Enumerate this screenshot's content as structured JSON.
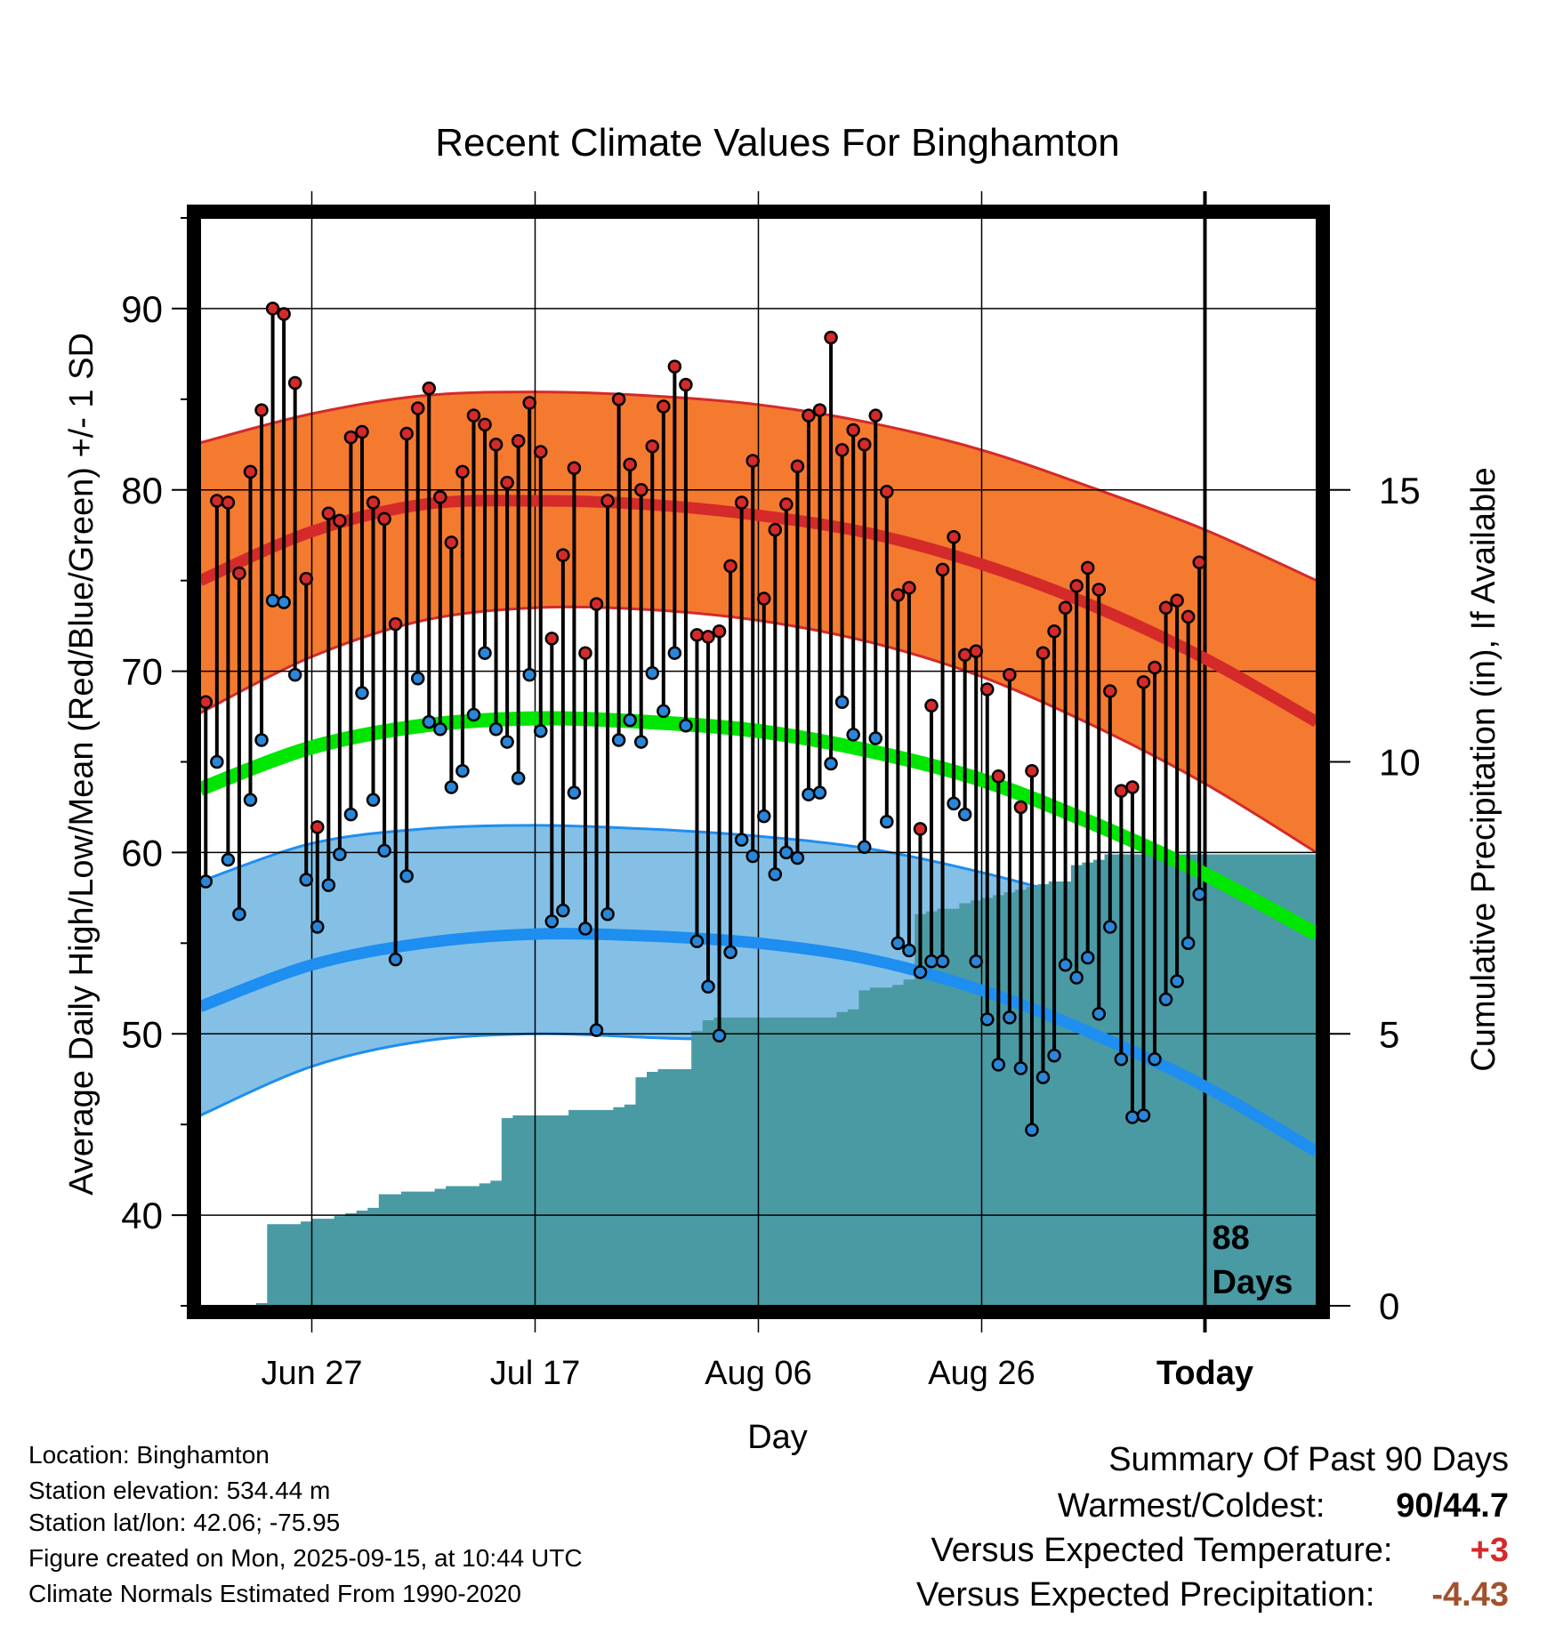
{
  "chart_data": {
    "type": "line",
    "title": "Recent Climate Values For Binghamton",
    "xlabel": "Day",
    "ylabel": "Average Daily High/Low/Mean (Red/Blue/Green) +/- 1 SD",
    "y2label": "Cumulative Precipitation (in), If Available",
    "ylim": [
      35,
      95
    ],
    "y2lim": [
      0,
      20
    ],
    "yticks": [
      40,
      50,
      60,
      70,
      80,
      90
    ],
    "y2ticks": [
      0,
      5,
      10,
      15
    ],
    "xlim": [
      0,
      100
    ],
    "xticks": [
      {
        "day": 10,
        "label": "Jun 27"
      },
      {
        "day": 30,
        "label": "Jul 17"
      },
      {
        "day": 50,
        "label": "Aug 06"
      },
      {
        "day": 70,
        "label": "Aug 26"
      },
      {
        "day": 90,
        "label": "Today"
      }
    ],
    "today_day": 90,
    "today_annotation": [
      "88",
      "Days"
    ],
    "colors": {
      "high_band": "#f47a30",
      "high_line": "#d42a2a",
      "high_edge": "#d42a2a",
      "low_band": "#84c0e6",
      "low_line": "#1e8ef0",
      "low_edge": "#1e8ef0",
      "mean_line": "#00e600",
      "precip": "#4a9aa4",
      "high_marker": "#d42a2a",
      "low_marker": "#2a86d8"
    },
    "normals": {
      "days": [
        0,
        10,
        20,
        30,
        40,
        50,
        60,
        70,
        80,
        90,
        100
      ],
      "high_mean": [
        75.0,
        77.7,
        79.2,
        79.4,
        79.2,
        78.6,
        77.6,
        75.9,
        73.6,
        70.7,
        67.2
      ],
      "high_upper": [
        82.6,
        84.2,
        85.2,
        85.4,
        85.2,
        84.7,
        83.7,
        82.2,
        80.1,
        77.8,
        75.0
      ],
      "high_lower": [
        67.7,
        70.8,
        72.8,
        73.5,
        73.4,
        72.8,
        71.6,
        69.7,
        67.0,
        63.8,
        60.0
      ],
      "mean_mean": [
        63.5,
        65.8,
        67.0,
        67.4,
        67.2,
        66.7,
        65.6,
        64.0,
        61.6,
        58.8,
        55.5
      ],
      "low_mean": [
        51.5,
        53.8,
        55.0,
        55.5,
        55.4,
        55.0,
        54.1,
        52.4,
        50.0,
        47.1,
        43.5
      ],
      "low_upper": [
        58.4,
        60.5,
        61.3,
        61.5,
        61.3,
        60.9,
        60.2,
        58.9,
        57.2,
        54.9,
        52.0
      ],
      "low_lower": [
        45.5,
        48.2,
        49.6,
        50.0,
        49.8,
        49.5,
        48.5,
        46.7,
        43.8,
        40.5,
        36.5
      ]
    },
    "series": [
      {
        "name": "Daily High",
        "values": [
          68.3,
          79.4,
          79.3,
          75.4,
          81.0,
          84.4,
          90.0,
          89.7,
          85.9,
          75.1,
          61.4,
          78.7,
          78.3,
          82.9,
          83.2,
          79.3,
          78.4,
          72.6,
          83.1,
          84.5,
          85.6,
          79.6,
          77.1,
          81.0,
          84.1,
          83.6,
          82.5,
          80.4,
          82.7,
          84.8,
          82.1,
          71.8,
          76.4,
          81.2,
          71.0,
          73.7,
          79.4,
          85.0,
          81.4,
          80.0,
          82.4,
          84.6,
          86.8,
          85.8,
          72.0,
          71.9,
          72.2,
          75.8,
          79.3,
          81.6,
          74.0,
          77.8,
          79.2,
          81.3,
          84.1,
          84.4,
          88.4,
          82.2,
          83.3,
          82.5,
          84.1,
          79.9,
          74.2,
          74.6,
          61.3,
          68.1,
          75.6,
          77.4,
          70.9,
          71.1,
          69.0,
          64.2,
          69.8,
          62.5,
          64.5,
          71.0,
          72.2,
          73.5,
          74.7,
          75.7,
          74.5,
          68.9,
          63.4,
          63.6,
          69.4,
          70.2,
          73.5,
          73.9,
          73.0,
          76.0
        ]
      },
      {
        "name": "Daily Low",
        "values": [
          58.4,
          65.0,
          59.6,
          56.6,
          62.9,
          66.2,
          73.9,
          73.8,
          69.8,
          58.5,
          55.9,
          58.2,
          59.9,
          62.1,
          68.8,
          62.9,
          60.1,
          54.1,
          58.7,
          69.6,
          67.2,
          66.8,
          63.6,
          64.5,
          67.6,
          71.0,
          66.8,
          66.1,
          64.1,
          69.8,
          66.7,
          56.2,
          56.8,
          63.3,
          55.8,
          50.2,
          56.6,
          66.2,
          67.3,
          66.1,
          69.9,
          67.8,
          71.0,
          67.0,
          55.1,
          52.6,
          49.9,
          54.5,
          60.7,
          59.8,
          62.0,
          58.8,
          60.0,
          59.7,
          63.2,
          63.3,
          64.9,
          68.3,
          66.5,
          60.3,
          66.3,
          61.7,
          55.0,
          54.6,
          53.4,
          54.0,
          54.0,
          62.7,
          62.1,
          54.0,
          50.8,
          48.3,
          50.9,
          48.1,
          44.7,
          47.6,
          48.8,
          53.8,
          53.1,
          54.2,
          51.1,
          55.9,
          48.6,
          45.4,
          45.5,
          48.6,
          51.9,
          52.9,
          55.0,
          57.7
        ]
      },
      {
        "name": "Cumulative Precipitation",
        "values": [
          0,
          0,
          0,
          0,
          0,
          0.05,
          1.5,
          1.5,
          1.5,
          1.55,
          1.6,
          1.6,
          1.65,
          1.7,
          1.75,
          1.8,
          2.05,
          2.05,
          2.1,
          2.1,
          2.1,
          2.15,
          2.2,
          2.2,
          2.2,
          2.25,
          2.3,
          3.45,
          3.5,
          3.5,
          3.5,
          3.5,
          3.5,
          3.6,
          3.6,
          3.6,
          3.6,
          3.65,
          3.7,
          4.2,
          4.3,
          4.35,
          4.35,
          4.35,
          5.05,
          5.25,
          5.3,
          5.3,
          5.3,
          5.3,
          5.3,
          5.3,
          5.3,
          5.3,
          5.3,
          5.3,
          5.3,
          5.4,
          5.45,
          5.8,
          5.85,
          5.85,
          5.9,
          6.0,
          7.2,
          7.25,
          7.3,
          7.3,
          7.4,
          7.45,
          7.5,
          7.55,
          7.6,
          7.65,
          7.7,
          7.75,
          7.8,
          7.8,
          8.1,
          8.15,
          8.2,
          8.3,
          8.3,
          8.3,
          8.3,
          8.3,
          8.3,
          8.3,
          8.3,
          8.3,
          8.3
        ]
      }
    ]
  },
  "info": {
    "location": "Location: Binghamton",
    "elevation": "Station elevation: 534.44 m",
    "latlon": "Station lat/lon: 42.06; -75.95",
    "created": "Figure created on Mon, 2025-09-15, at 10:44 UTC",
    "normals": "Climate Normals Estimated From 1990-2020"
  },
  "summary": {
    "title": "Summary Of Past 90 Days",
    "warm_cold_label": "Warmest/Coldest:",
    "warm_value": "90",
    "slash": "/",
    "cold_value": "44.7",
    "temp_label": "Versus Expected Temperature:",
    "temp_value": "+3",
    "precip_label": "Versus Expected Precipitation:",
    "precip_value": "-4.43",
    "temp_color": "#d42a2a",
    "precip_color": "#a0522d"
  }
}
